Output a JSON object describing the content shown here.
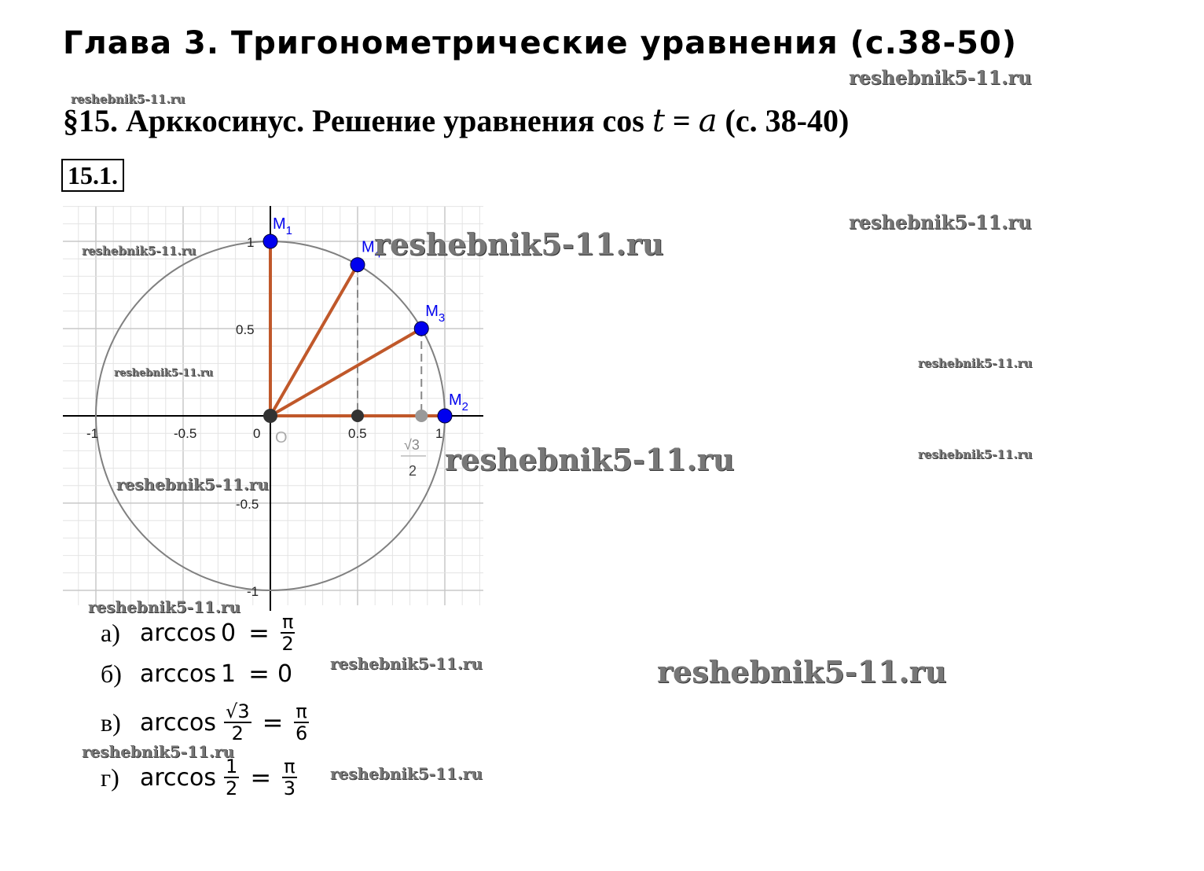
{
  "header": {
    "chapter_title": "Глава 3. Тригонометрические уравнения (с.38-50)",
    "section_title_prefix": "§15. Арккосинус. Решение уравнения cos ",
    "section_t": "t",
    "section_eq": " = ",
    "section_a": "a",
    "section_suffix": " (с. 38-40)",
    "problem_number": "15.1."
  },
  "figure": {
    "x_ticks": [
      "-1",
      "-0.5",
      "0",
      "0.5",
      "1"
    ],
    "y_ticks": [
      "1",
      "0.5",
      "-0.5",
      "-1"
    ],
    "origin_label": "O",
    "sqrt3_over_2_num": "√3",
    "sqrt3_over_2_den": "2",
    "points": [
      {
        "name": "M",
        "sub": "1",
        "x": 0,
        "y": 1
      },
      {
        "name": "M",
        "sub": "2",
        "x": 1,
        "y": 0
      },
      {
        "name": "M",
        "sub": "3",
        "x": 0.866,
        "y": 0.5
      },
      {
        "name": "M",
        "sub": "4",
        "x": 0.5,
        "y": 0.866
      }
    ],
    "colors": {
      "point": "#0000ee",
      "segment": "#c0582a",
      "circle": "#808080",
      "grid": "#d0d0d0"
    }
  },
  "answers": [
    {
      "label": "а)",
      "fn": "arccos",
      "arg": "0",
      "res_num": "π",
      "res_den": "2"
    },
    {
      "label": "б)",
      "fn": "arccos",
      "arg": "1",
      "res": "0"
    },
    {
      "label": "в)",
      "fn": "arccos",
      "arg_num": "√3",
      "arg_den": "2",
      "res_num": "π",
      "res_den": "6"
    },
    {
      "label": "г)",
      "fn": "arccos",
      "arg_num": "1",
      "arg_den": "2",
      "res_num": "π",
      "res_den": "3"
    }
  ],
  "watermark": "reshebnik5-11.ru"
}
